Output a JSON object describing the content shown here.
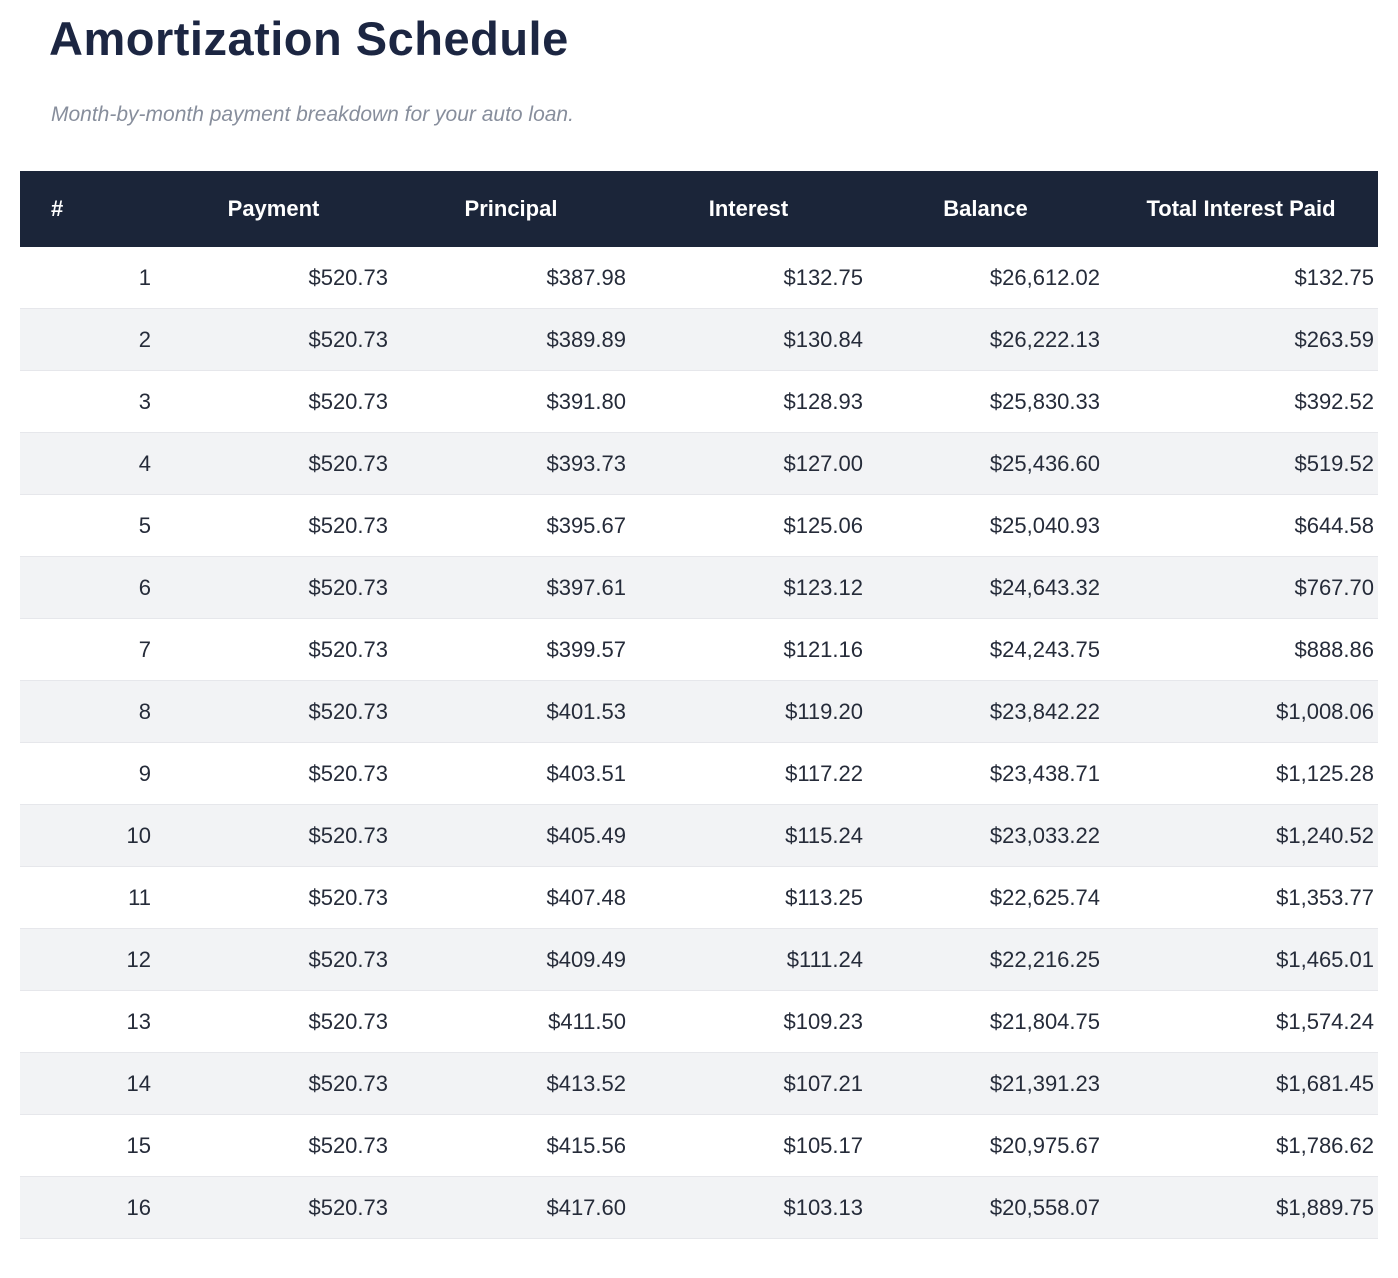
{
  "page": {
    "title": "Amortization Schedule",
    "subtitle": "Month-by-month payment breakdown for your auto loan."
  },
  "colors": {
    "title_text": "#1c2642",
    "subtitle_text": "#878e9c",
    "header_bg": "#1b2539",
    "header_text": "#ffffff",
    "row_alt_bg": "#f2f3f5",
    "cell_text": "#252b39",
    "row_border": "#e6e7eb"
  },
  "table": {
    "columns": [
      {
        "key": "num",
        "label": "#"
      },
      {
        "key": "payment",
        "label": "Payment"
      },
      {
        "key": "principal",
        "label": "Principal"
      },
      {
        "key": "interest",
        "label": "Interest"
      },
      {
        "key": "balance",
        "label": "Balance"
      },
      {
        "key": "total_interest_paid",
        "label": "Total Interest Paid"
      }
    ],
    "rows": [
      [
        "1",
        "$520.73",
        "$387.98",
        "$132.75",
        "$26,612.02",
        "$132.75"
      ],
      [
        "2",
        "$520.73",
        "$389.89",
        "$130.84",
        "$26,222.13",
        "$263.59"
      ],
      [
        "3",
        "$520.73",
        "$391.80",
        "$128.93",
        "$25,830.33",
        "$392.52"
      ],
      [
        "4",
        "$520.73",
        "$393.73",
        "$127.00",
        "$25,436.60",
        "$519.52"
      ],
      [
        "5",
        "$520.73",
        "$395.67",
        "$125.06",
        "$25,040.93",
        "$644.58"
      ],
      [
        "6",
        "$520.73",
        "$397.61",
        "$123.12",
        "$24,643.32",
        "$767.70"
      ],
      [
        "7",
        "$520.73",
        "$399.57",
        "$121.16",
        "$24,243.75",
        "$888.86"
      ],
      [
        "8",
        "$520.73",
        "$401.53",
        "$119.20",
        "$23,842.22",
        "$1,008.06"
      ],
      [
        "9",
        "$520.73",
        "$403.51",
        "$117.22",
        "$23,438.71",
        "$1,125.28"
      ],
      [
        "10",
        "$520.73",
        "$405.49",
        "$115.24",
        "$23,033.22",
        "$1,240.52"
      ],
      [
        "11",
        "$520.73",
        "$407.48",
        "$113.25",
        "$22,625.74",
        "$1,353.77"
      ],
      [
        "12",
        "$520.73",
        "$409.49",
        "$111.24",
        "$22,216.25",
        "$1,465.01"
      ],
      [
        "13",
        "$520.73",
        "$411.50",
        "$109.23",
        "$21,804.75",
        "$1,574.24"
      ],
      [
        "14",
        "$520.73",
        "$413.52",
        "$107.21",
        "$21,391.23",
        "$1,681.45"
      ],
      [
        "15",
        "$520.73",
        "$415.56",
        "$105.17",
        "$20,975.67",
        "$1,786.62"
      ],
      [
        "16",
        "$520.73",
        "$417.60",
        "$103.13",
        "$20,558.07",
        "$1,889.75"
      ]
    ]
  }
}
